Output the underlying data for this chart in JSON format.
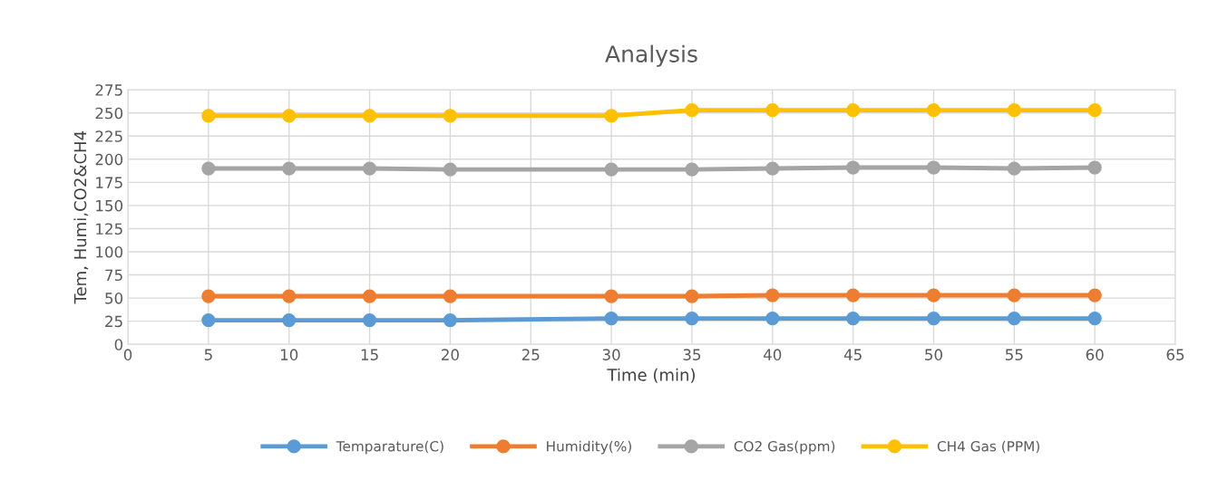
{
  "chart_data": {
    "type": "line",
    "title": "Analysis",
    "xlabel": "Time (min)",
    "ylabel": "Tem, Humi,CO2&CH4",
    "x": [
      5,
      10,
      15,
      20,
      30,
      35,
      40,
      45,
      50,
      55,
      60
    ],
    "series": [
      {
        "name": "Temparature(C)",
        "color": "#5b9bd5",
        "values": [
          26,
          26,
          26,
          26,
          28,
          28,
          28,
          28,
          28,
          28,
          28
        ]
      },
      {
        "name": "Humidity(%)",
        "color": "#ed7d31",
        "values": [
          52,
          52,
          52,
          52,
          52,
          52,
          53,
          53,
          53,
          53,
          53
        ]
      },
      {
        "name": "CO2 Gas(ppm)",
        "color": "#a5a5a5",
        "values": [
          190,
          190,
          190,
          189,
          189,
          189,
          190,
          191,
          191,
          190,
          191
        ]
      },
      {
        "name": "CH4 Gas (PPM)",
        "color": "#ffc000",
        "values": [
          247,
          247,
          247,
          247,
          247,
          253,
          253,
          253,
          253,
          253,
          253
        ]
      }
    ],
    "xlim": [
      0,
      65
    ],
    "xticks": [
      0,
      5,
      10,
      15,
      20,
      25,
      30,
      35,
      40,
      45,
      50,
      55,
      60,
      65
    ],
    "ylim": [
      0,
      275
    ],
    "yticks": [
      0,
      25,
      50,
      75,
      100,
      125,
      150,
      175,
      200,
      225,
      250,
      275
    ],
    "grid": true,
    "legend": "bottom",
    "marker": "circle",
    "line_style": "solid"
  }
}
